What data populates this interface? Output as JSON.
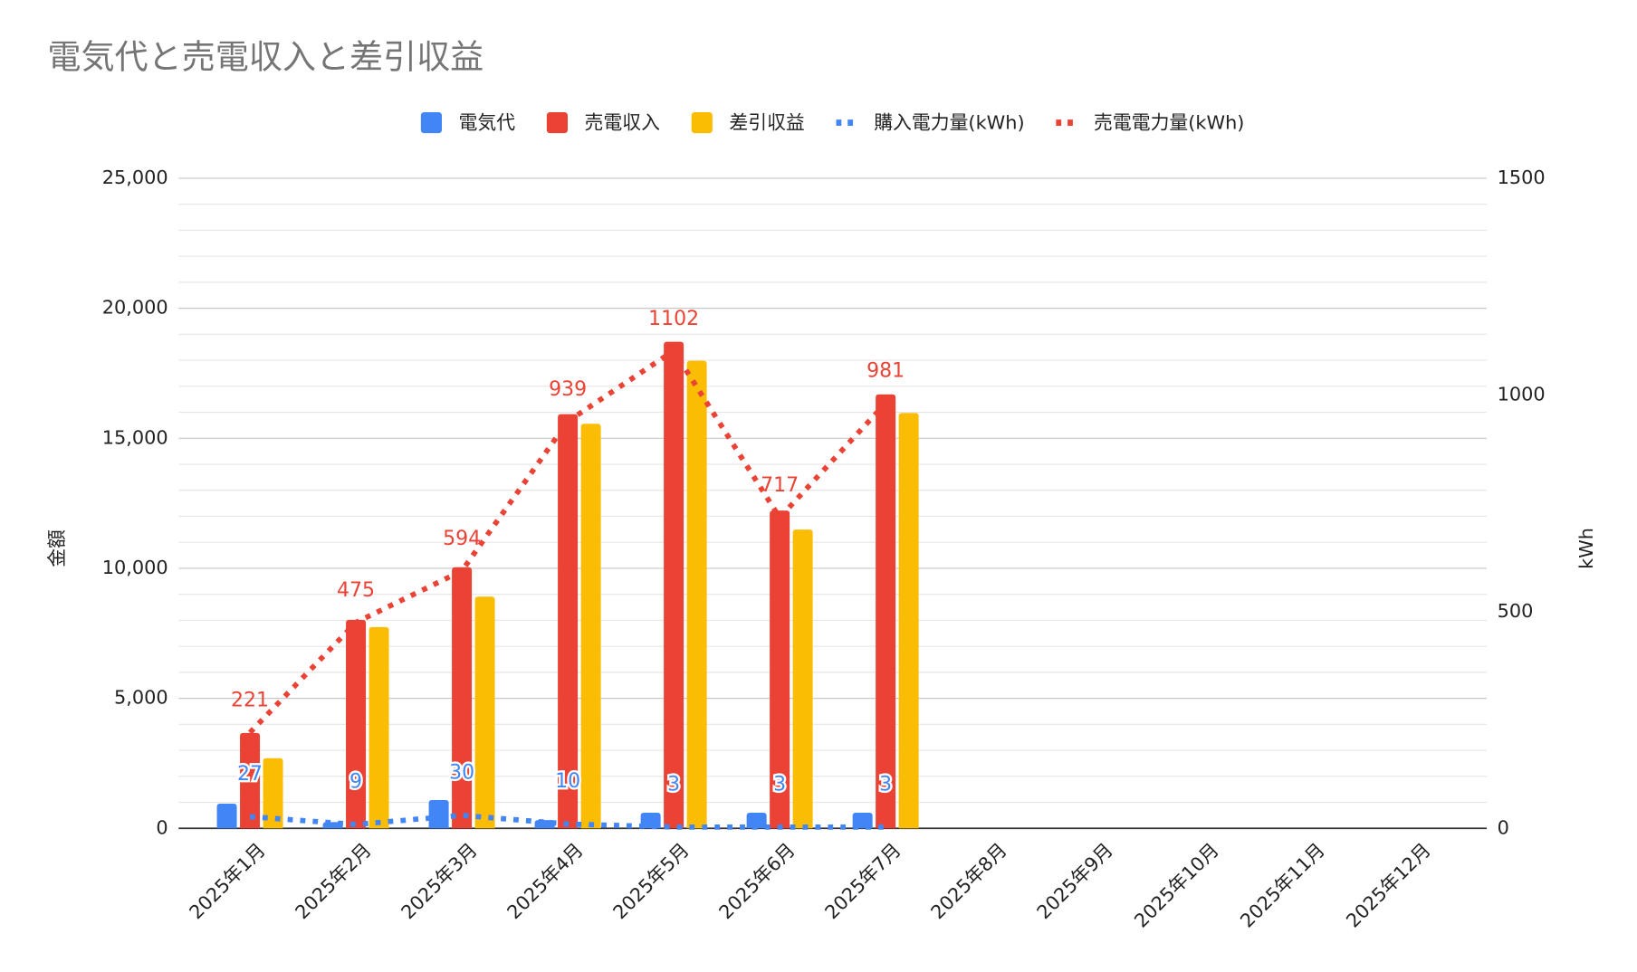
{
  "chart_data": {
    "type": "combo",
    "title": "電気代と売電収入と差引収益",
    "y_label": "金額",
    "y2_label": "kWh",
    "categories": [
      "2025年1月",
      "2025年2月",
      "2025年3月",
      "2025年4月",
      "2025年5月",
      "2025年6月",
      "2025年7月",
      "2025年8月",
      "2025年9月",
      "2025年10月",
      "2025年11月",
      "2025年12月"
    ],
    "series": [
      {
        "name": "電気代",
        "type": "bar",
        "color": "#4285f4",
        "values": [
          950,
          240,
          1090,
          320,
          600,
          600,
          600,
          null,
          null,
          null,
          null,
          null
        ]
      },
      {
        "name": "売電収入",
        "type": "bar",
        "color": "#ea4335",
        "values": [
          3670,
          8020,
          10040,
          15930,
          18710,
          12220,
          16690,
          null,
          null,
          null,
          null,
          null
        ]
      },
      {
        "name": "差引収益",
        "type": "bar",
        "color": "#fbbc04",
        "values": [
          2700,
          7740,
          8910,
          15560,
          17980,
          11490,
          15970,
          null,
          null,
          null,
          null,
          null
        ]
      },
      {
        "name": "購入電力量(kWh)",
        "type": "line",
        "axis": "y2",
        "color": "#4285f4",
        "values": [
          27,
          9,
          30,
          10,
          3,
          3,
          3,
          null,
          null,
          null,
          null,
          null
        ]
      },
      {
        "name": "売電電力量(kWh)",
        "type": "line",
        "axis": "y2",
        "color": "#ea4335",
        "values": [
          221,
          475,
          594,
          939,
          1102,
          717,
          981,
          null,
          null,
          null,
          null,
          null
        ]
      }
    ],
    "ylim": [
      0,
      25000
    ],
    "yticks": [
      0,
      {
        "value": 5000,
        "label": "5,000"
      },
      {
        "value": 10000,
        "label": "10,000"
      },
      {
        "value": 15000,
        "label": "15,000"
      },
      {
        "value": 20000,
        "label": "20,000"
      },
      {
        "value": 25000,
        "label": "25,000"
      }
    ],
    "y2lim": [
      0,
      1500
    ],
    "y2ticks": [
      0,
      500,
      1000,
      1500
    ],
    "grid": true,
    "minor_grid_divisions": 5,
    "legend": "top"
  }
}
